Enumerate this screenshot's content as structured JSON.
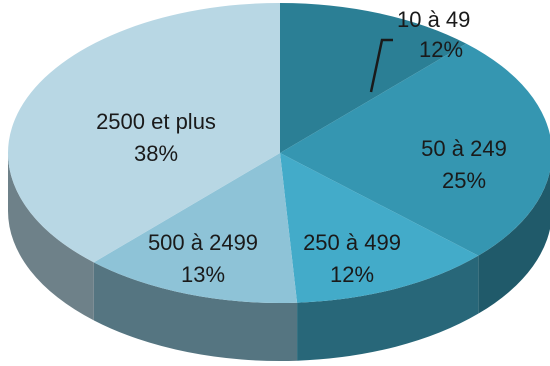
{
  "chart_data": {
    "type": "pie",
    "style": "3d",
    "title": "",
    "slices": [
      {
        "label": "10 à 49",
        "value": 12,
        "pct_text": "12%",
        "color": "#2b7f95"
      },
      {
        "label": "50 à 249",
        "value": 25,
        "pct_text": "25%",
        "color": "#3596b1"
      },
      {
        "label": "250 à 499",
        "value": 12,
        "pct_text": "12%",
        "color": "#43abc9"
      },
      {
        "label": "500 à 2499",
        "value": 13,
        "pct_text": "13%",
        "color": "#8ec3d7"
      },
      {
        "label": "2500 et plus",
        "value": 38,
        "pct_text": "38%",
        "color": "#b8d7e4"
      }
    ]
  }
}
